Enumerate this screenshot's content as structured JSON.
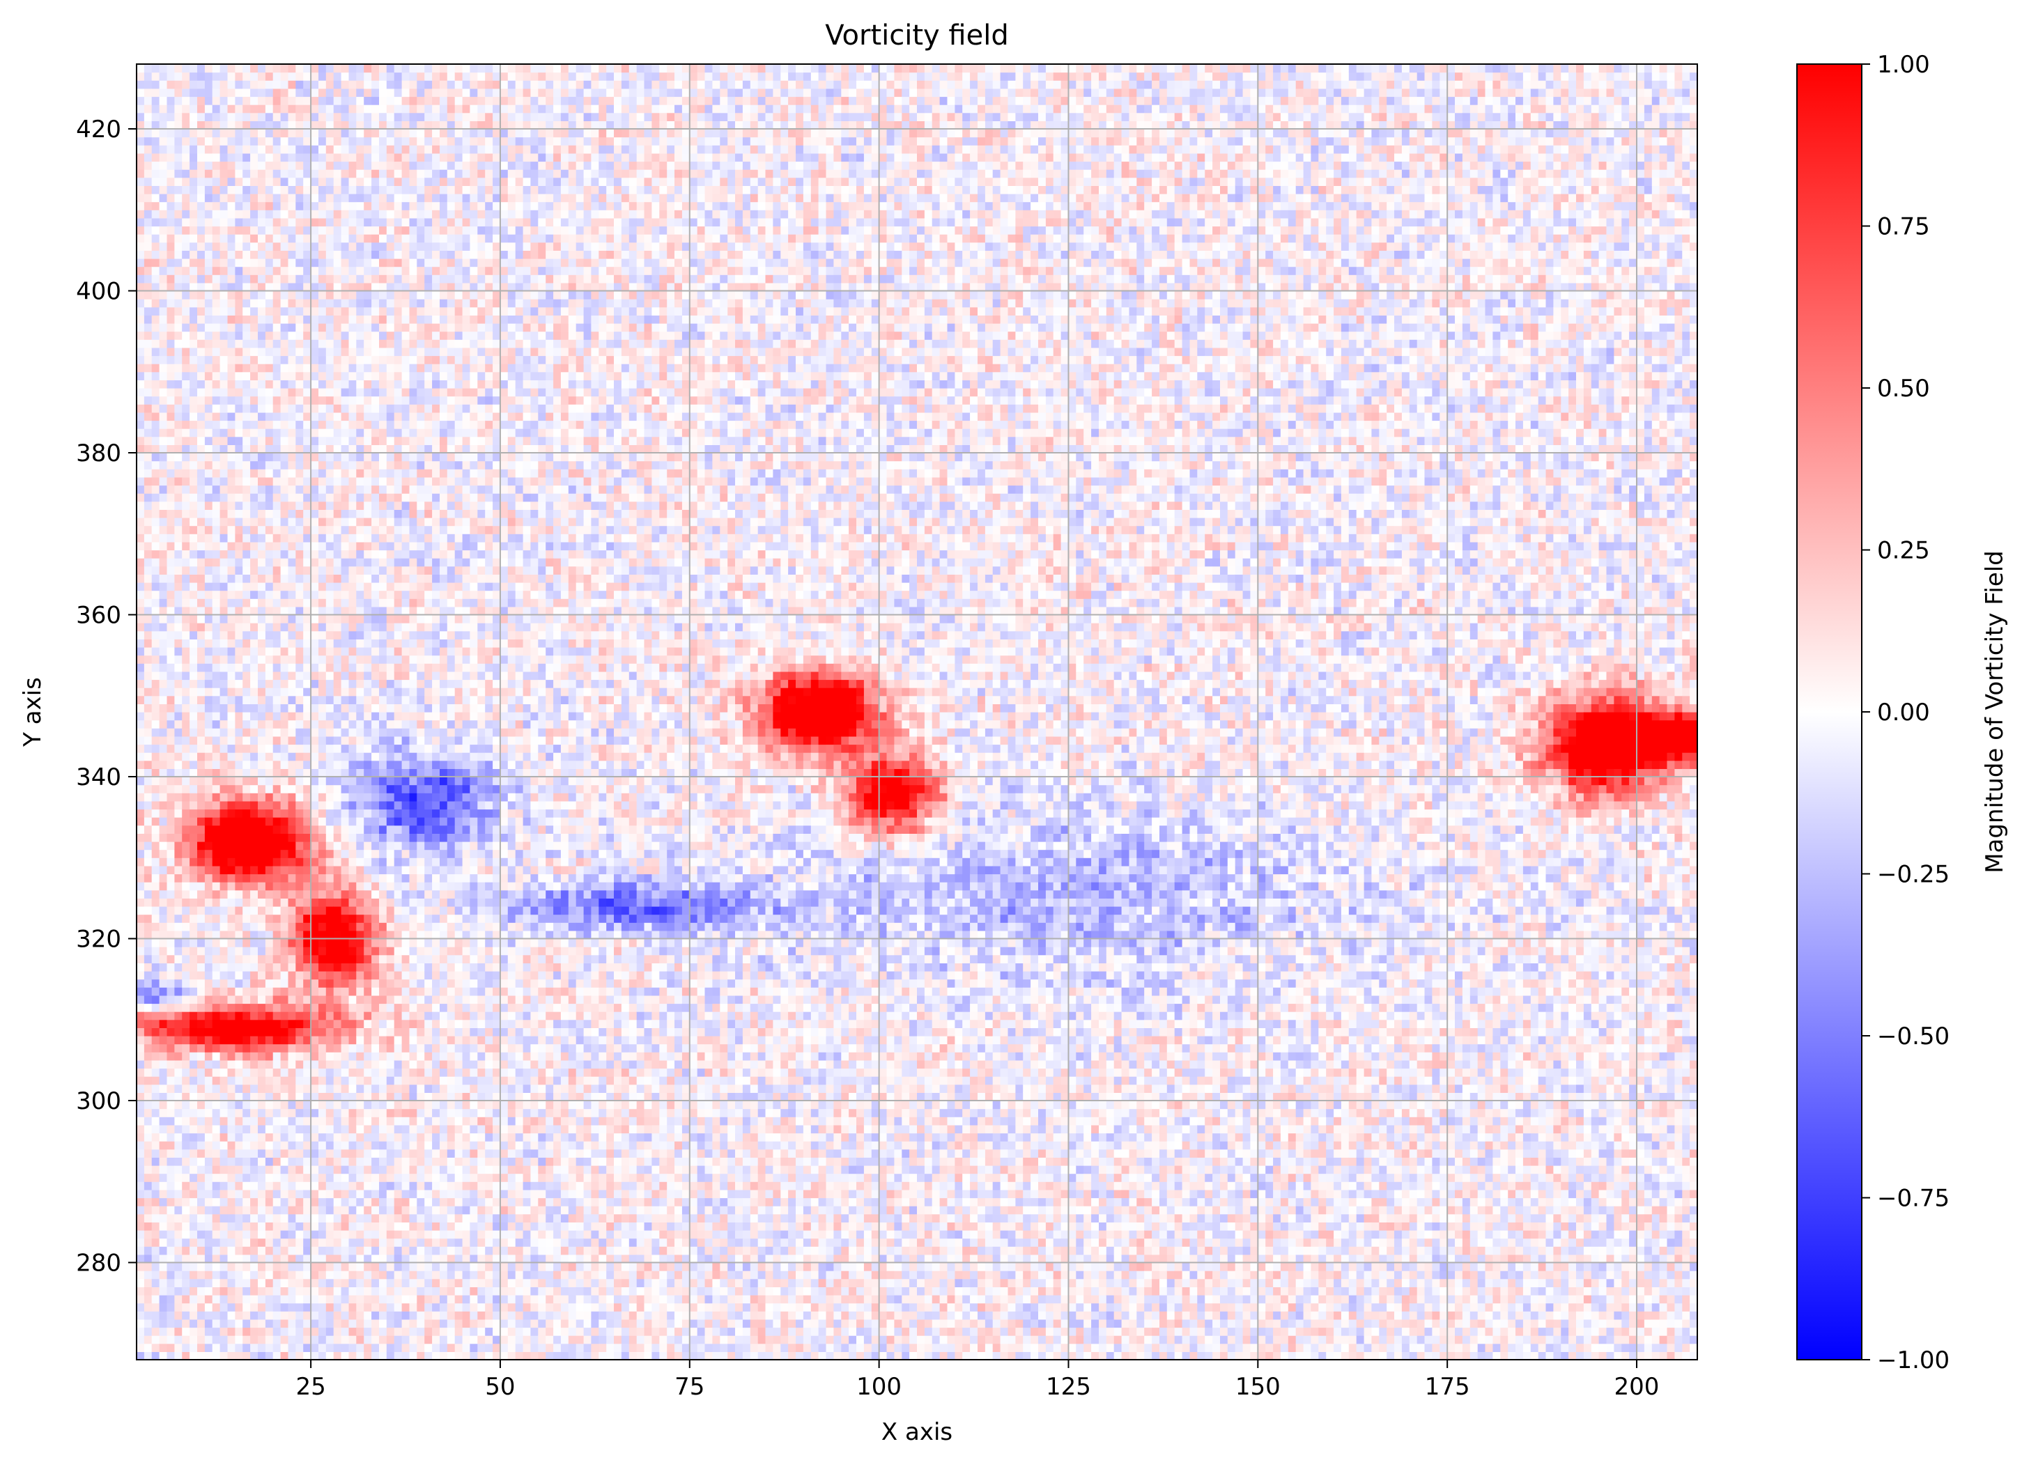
{
  "chart_data": {
    "type": "heatmap",
    "title": "Vorticity field",
    "xlabel": "X axis",
    "ylabel": "Y axis",
    "xlim": [
      2,
      208
    ],
    "ylim": [
      268,
      428
    ],
    "x_ticks": [
      25,
      50,
      75,
      100,
      125,
      150,
      175,
      200
    ],
    "x_tick_labels": [
      "25",
      "50",
      "75",
      "100",
      "125",
      "150",
      "175",
      "200"
    ],
    "y_ticks": [
      280,
      300,
      320,
      340,
      360,
      380,
      400,
      420
    ],
    "y_tick_labels": [
      "280",
      "300",
      "320",
      "340",
      "360",
      "380",
      "400",
      "420"
    ],
    "grid": true,
    "colormap": "bwr",
    "colors": {
      "low": "#0000ff",
      "mid": "#ffffff",
      "high": "#ff0000",
      "grid": "#b0b0b0"
    },
    "colorbar": {
      "label": "Magnitude of Vorticity Field",
      "range": [
        -1.0,
        1.0
      ],
      "ticks": [
        1.0,
        0.75,
        0.5,
        0.25,
        0.0,
        -0.25,
        -0.5,
        -0.75,
        -1.0
      ],
      "tick_labels": [
        "1.00",
        "0.75",
        "0.50",
        "0.25",
        "0.00",
        "−0.25",
        "−0.50",
        "−0.75",
        "−1.00"
      ]
    },
    "features": [
      {
        "kind": "positive-vortex",
        "x": 17,
        "y": 332,
        "rx": 8,
        "ry": 5,
        "value": 1.0
      },
      {
        "kind": "positive-tail",
        "x": 28,
        "y": 320,
        "rx": 6,
        "ry": 6,
        "value": 0.8
      },
      {
        "kind": "positive-band",
        "x": 15,
        "y": 309,
        "rx": 14,
        "ry": 3,
        "value": 0.75
      },
      {
        "kind": "positive-vortex",
        "x": 92,
        "y": 348,
        "rx": 8,
        "ry": 5,
        "value": 1.0
      },
      {
        "kind": "positive-tail",
        "x": 102,
        "y": 338,
        "rx": 6,
        "ry": 5,
        "value": 0.8
      },
      {
        "kind": "positive-vortex",
        "x": 196,
        "y": 344,
        "rx": 8,
        "ry": 6,
        "value": 1.0
      },
      {
        "kind": "positive-tail",
        "x": 206,
        "y": 345,
        "rx": 5,
        "ry": 3,
        "value": 0.85
      },
      {
        "kind": "negative-band",
        "x": 40,
        "y": 337,
        "rx": 10,
        "ry": 6,
        "value": -0.45
      },
      {
        "kind": "negative-band",
        "x": 68,
        "y": 324,
        "rx": 18,
        "ry": 3,
        "value": -0.35
      },
      {
        "kind": "negative-band",
        "x": 5,
        "y": 313,
        "rx": 5,
        "ry": 2,
        "value": -0.35
      },
      {
        "kind": "negative-band",
        "x": 125,
        "y": 326,
        "rx": 40,
        "ry": 10,
        "value": -0.18
      }
    ]
  }
}
